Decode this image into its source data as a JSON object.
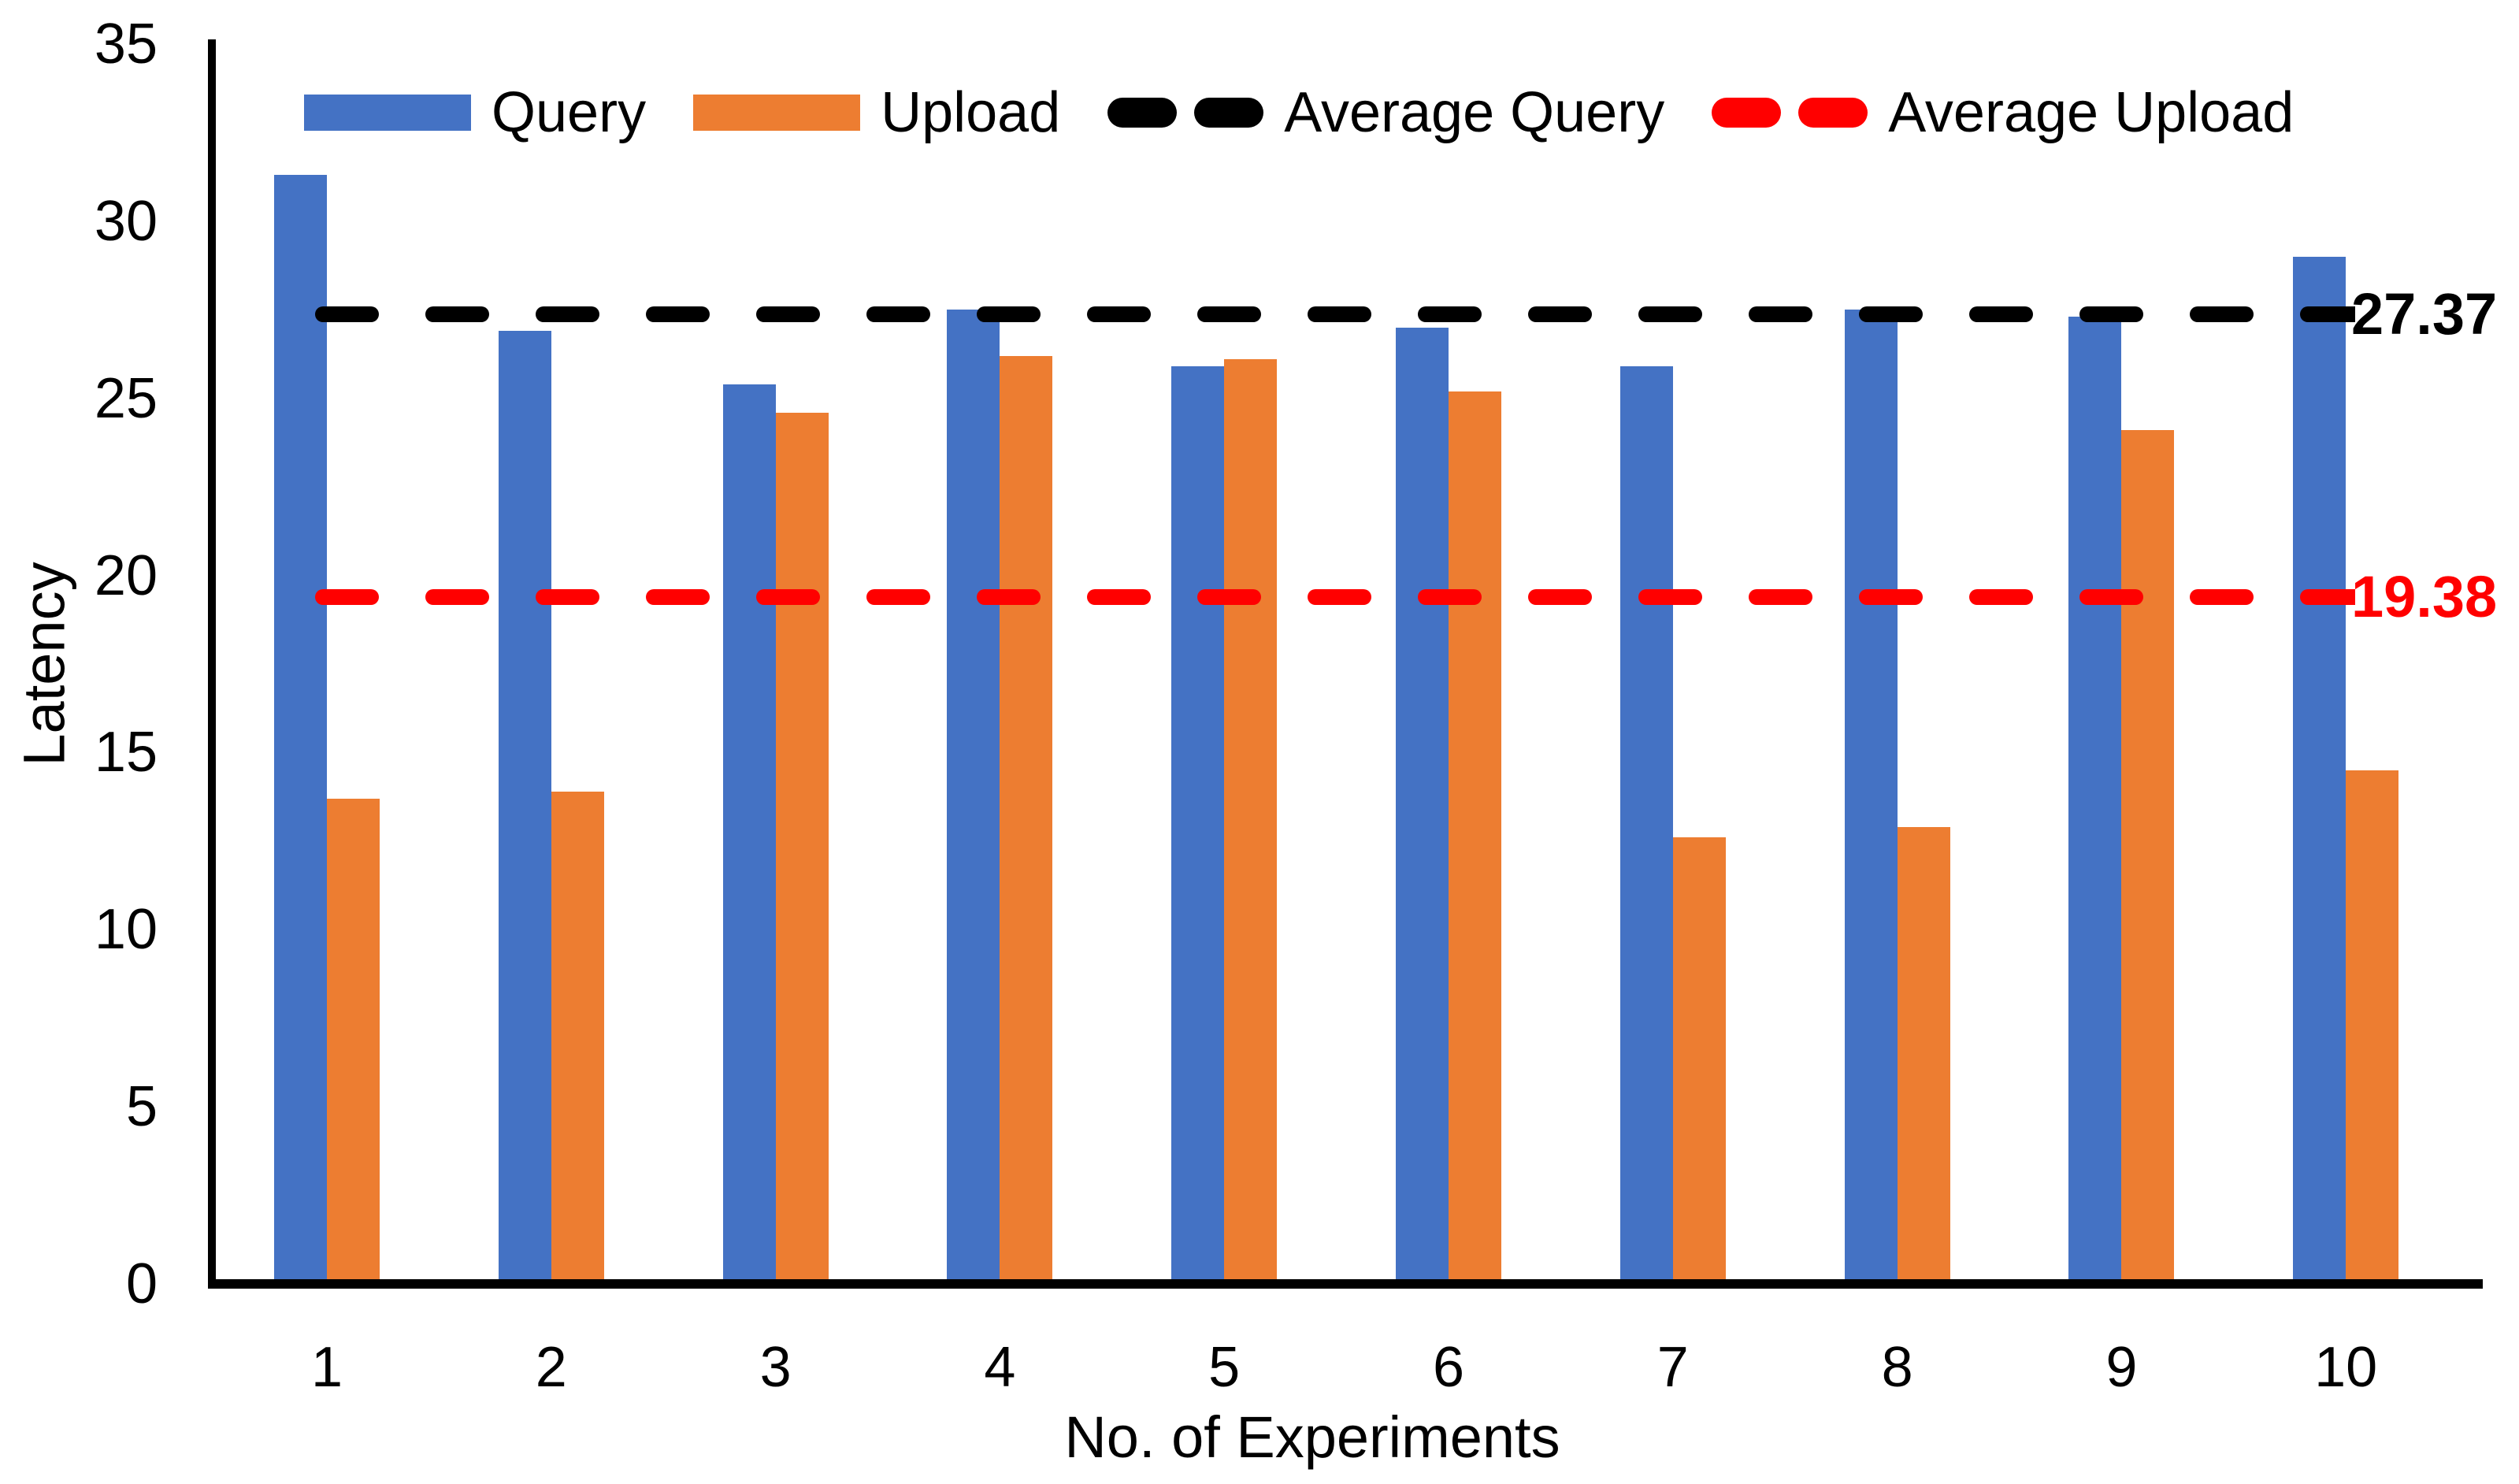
{
  "chart_data": {
    "type": "bar",
    "title": "",
    "ylabel": "Latency",
    "xlabel": "No. of Experiments",
    "ylim": [
      0,
      35
    ],
    "ytick_step": 5,
    "yticks": [
      0,
      5,
      10,
      15,
      20,
      25,
      30,
      35
    ],
    "categories": [
      "1",
      "2",
      "3",
      "4",
      "5",
      "6",
      "7",
      "8",
      "9",
      "10"
    ],
    "series": [
      {
        "name": "Query",
        "color": "#4472C4",
        "values": [
          31.3,
          26.9,
          25.4,
          27.5,
          25.9,
          27.0,
          25.9,
          27.5,
          27.3,
          29.0
        ]
      },
      {
        "name": "Upload",
        "color": "#ED7D31",
        "values": [
          13.7,
          13.9,
          24.6,
          26.2,
          26.1,
          25.2,
          12.6,
          12.9,
          24.1,
          14.5
        ]
      }
    ],
    "average_lines": [
      {
        "name": "Average Query",
        "value": 27.37,
        "label": "27.37",
        "color": "#000000",
        "style": "dashed"
      },
      {
        "name": "Average Upload",
        "value": 19.38,
        "label": "19.38",
        "color": "#FF0000",
        "style": "dashed"
      }
    ],
    "grid": false,
    "legend_position": "top"
  },
  "legend": {
    "items": [
      {
        "label": "Query",
        "marker": "rect",
        "color": "#4472C4"
      },
      {
        "label": "Upload",
        "marker": "rect",
        "color": "#ED7D31"
      },
      {
        "label": "Average Query",
        "marker": "dashes",
        "color": "#000000"
      },
      {
        "label": "Average Upload",
        "marker": "dashes",
        "color": "#FF0000"
      }
    ]
  }
}
